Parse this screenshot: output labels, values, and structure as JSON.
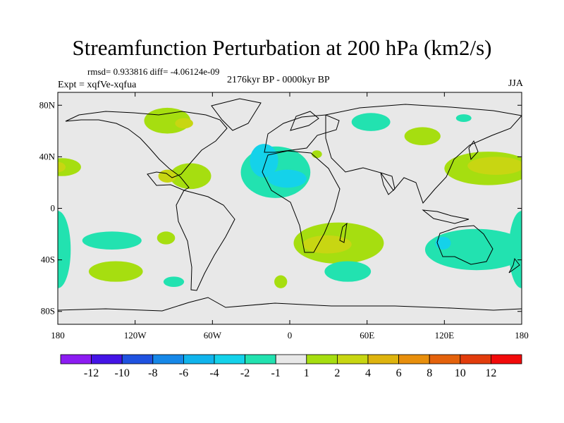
{
  "title": "Streamfunction Perturbation at 200 hPa (km2/s)",
  "stats": "rmsd= 0.933816 diff= -4.06124e-09",
  "expt": "Expt = xqfVe-xqfua",
  "period": "2176kyr BP - 0000kyr BP",
  "season": "JJA",
  "lat_ticks": [
    {
      "value": 80,
      "label": "80N"
    },
    {
      "value": 40,
      "label": "40N"
    },
    {
      "value": 0,
      "label": "0"
    },
    {
      "value": -40,
      "label": "40S"
    },
    {
      "value": -80,
      "label": "80S"
    }
  ],
  "lon_ticks": [
    {
      "value": -180,
      "label": "180"
    },
    {
      "value": -120,
      "label": "120W"
    },
    {
      "value": -60,
      "label": "60W"
    },
    {
      "value": 0,
      "label": "0"
    },
    {
      "value": 60,
      "label": "60E"
    },
    {
      "value": 120,
      "label": "120E"
    },
    {
      "value": 180,
      "label": "180"
    }
  ],
  "colorbar": {
    "colors": [
      "#8c1cf2",
      "#4414e6",
      "#1f52e0",
      "#1688e8",
      "#10b4ec",
      "#14d2ea",
      "#22e2b0",
      "#e8e8e8",
      "#a6de10",
      "#c8d612",
      "#deb40e",
      "#e88f0c",
      "#e4620c",
      "#e23c0c",
      "#f20a0a"
    ],
    "labels": [
      "-12",
      "-10",
      "-8",
      "-6",
      "-4",
      "-2",
      "-1",
      "1",
      "2",
      "4",
      "6",
      "8",
      "10",
      "12"
    ]
  },
  "field": [
    {
      "lon": -95,
      "lat": 68,
      "rx": 18,
      "ry": 10,
      "level": 1
    },
    {
      "lon": -82,
      "lat": 66,
      "rx": 7,
      "ry": 4,
      "level": 2
    },
    {
      "lon": -77,
      "lat": 25,
      "rx": 16,
      "ry": 10,
      "level": 1
    },
    {
      "lon": -95,
      "lat": 25,
      "rx": 7,
      "ry": 5,
      "level": 2
    },
    {
      "lon": -177,
      "lat": 32,
      "rx": 15,
      "ry": 7,
      "level": 1
    },
    {
      "lon": -180,
      "lat": 32,
      "rx": 6,
      "ry": 4,
      "level": 2
    },
    {
      "lon": -11,
      "lat": 28,
      "rx": 27,
      "ry": 20,
      "level": -1
    },
    {
      "lon": -20,
      "lat": 37,
      "rx": 11,
      "ry": 13,
      "level": -2
    },
    {
      "lon": -2,
      "lat": 23,
      "rx": 15,
      "ry": 7,
      "level": -2
    },
    {
      "lon": 21,
      "lat": 42,
      "rx": 4,
      "ry": 3,
      "level": 1
    },
    {
      "lon": 63,
      "lat": 67,
      "rx": 15,
      "ry": 7,
      "level": -1
    },
    {
      "lon": 103,
      "lat": 56,
      "rx": 14,
      "ry": 7,
      "level": 1
    },
    {
      "lon": 135,
      "lat": 70,
      "rx": 6,
      "ry": 3,
      "level": -1
    },
    {
      "lon": 154,
      "lat": 31,
      "rx": 34,
      "ry": 13,
      "level": 1
    },
    {
      "lon": 160,
      "lat": 33,
      "rx": 22,
      "ry": 7,
      "level": 2
    },
    {
      "lon": -138,
      "lat": -25,
      "rx": 23,
      "ry": 7,
      "level": -1
    },
    {
      "lon": -96,
      "lat": -23,
      "rx": 7,
      "ry": 5,
      "level": 1
    },
    {
      "lon": -90,
      "lat": -57,
      "rx": 8,
      "ry": 4,
      "level": -1
    },
    {
      "lon": -135,
      "lat": -49,
      "rx": 21,
      "ry": 8,
      "level": 1
    },
    {
      "lon": -180,
      "lat": -32,
      "rx": 10,
      "ry": 30,
      "level": -1
    },
    {
      "lon": 180,
      "lat": -32,
      "rx": 10,
      "ry": 30,
      "level": -1
    },
    {
      "lon": 38,
      "lat": -27,
      "rx": 35,
      "ry": 16,
      "level": 1
    },
    {
      "lon": 29,
      "lat": -28,
      "rx": 19,
      "ry": 7,
      "level": 2
    },
    {
      "lon": 45,
      "lat": -49,
      "rx": 18,
      "ry": 8,
      "level": -1
    },
    {
      "lon": -7,
      "lat": -57,
      "rx": 5,
      "ry": 5,
      "level": 1
    },
    {
      "lon": 145,
      "lat": -32,
      "rx": 40,
      "ry": 16,
      "level": -1
    },
    {
      "lon": 119,
      "lat": -27,
      "rx": 6,
      "ry": 5,
      "level": -2
    }
  ]
}
